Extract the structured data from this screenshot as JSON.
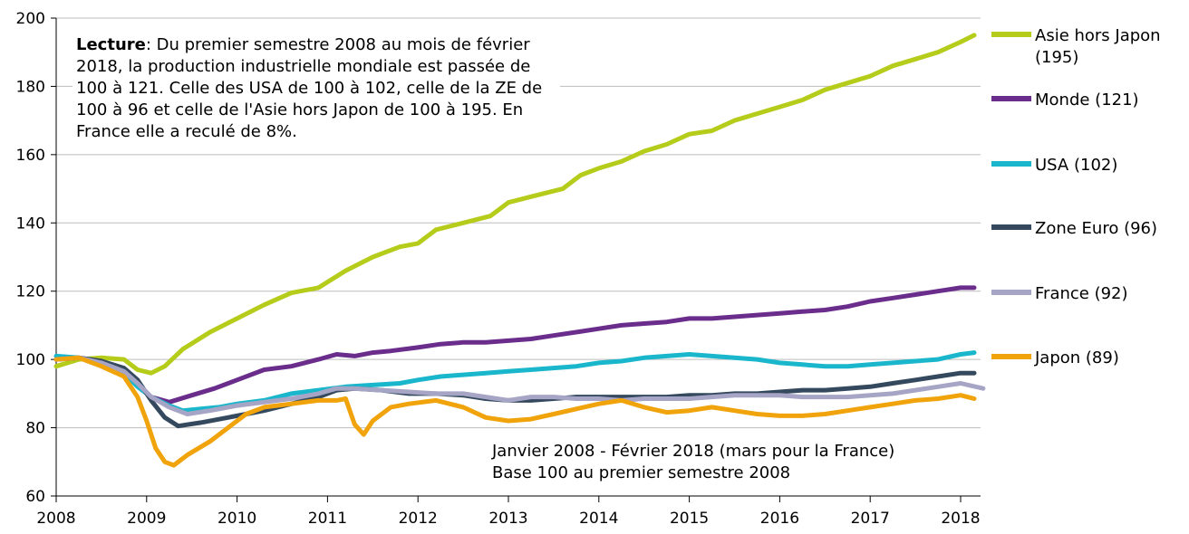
{
  "chart_data": {
    "type": "line",
    "x_range": [
      2008.0,
      2018.25
    ],
    "ylim": [
      60,
      200
    ],
    "yticks": [
      60,
      80,
      100,
      120,
      140,
      160,
      180,
      200
    ],
    "xticks": [
      "2008",
      "2009",
      "2010",
      "2011",
      "2012",
      "2013",
      "2014",
      "2015",
      "2016",
      "2017",
      "2018"
    ],
    "grid": "horizontal",
    "legend_placement": "right",
    "annotation": {
      "title": "Lecture",
      "text": ": Du premier semestre 2008 au mois de février 2018, la production industrielle mondiale est passée de 100 à 121. Celle des USA de 100 à 102, celle de la ZE de 100 à 96 et celle de l'Asie hors Japon de 100 à 195. En France elle a reculé de 8%."
    },
    "source_lines": [
      "Janvier 2008 - Février 2018 (mars pour la France)",
      "Base 100 au premier semestre 2008"
    ],
    "series": [
      {
        "name": "Asie hors Japon (195)",
        "legend_lines": [
          "Asie hors Japon",
          "(195)"
        ],
        "color": "#b5cc1a",
        "points": [
          [
            2008.0,
            98
          ],
          [
            2008.25,
            100
          ],
          [
            2008.5,
            100.5
          ],
          [
            2008.75,
            100
          ],
          [
            2008.9,
            97
          ],
          [
            2009.05,
            96
          ],
          [
            2009.2,
            98
          ],
          [
            2009.4,
            103
          ],
          [
            2009.7,
            108
          ],
          [
            2010.0,
            112
          ],
          [
            2010.3,
            116
          ],
          [
            2010.6,
            119.5
          ],
          [
            2010.9,
            121
          ],
          [
            2011.2,
            126
          ],
          [
            2011.5,
            130
          ],
          [
            2011.8,
            133
          ],
          [
            2012.0,
            134
          ],
          [
            2012.2,
            138
          ],
          [
            2012.5,
            140
          ],
          [
            2012.8,
            142
          ],
          [
            2013.0,
            146
          ],
          [
            2013.3,
            148
          ],
          [
            2013.6,
            150
          ],
          [
            2013.8,
            154
          ],
          [
            2014.0,
            156
          ],
          [
            2014.25,
            158
          ],
          [
            2014.5,
            161
          ],
          [
            2014.75,
            163
          ],
          [
            2015.0,
            166
          ],
          [
            2015.25,
            167
          ],
          [
            2015.5,
            170
          ],
          [
            2015.75,
            172
          ],
          [
            2016.0,
            174
          ],
          [
            2016.25,
            176
          ],
          [
            2016.5,
            179
          ],
          [
            2016.75,
            181
          ],
          [
            2017.0,
            183
          ],
          [
            2017.25,
            186
          ],
          [
            2017.5,
            188
          ],
          [
            2017.75,
            190
          ],
          [
            2018.0,
            193
          ],
          [
            2018.15,
            195
          ]
        ]
      },
      {
        "name": "Monde (121)",
        "legend_lines": [
          "Monde (121)"
        ],
        "color": "#6b2d8b",
        "points": [
          [
            2008.0,
            100
          ],
          [
            2008.25,
            100.5
          ],
          [
            2008.5,
            99.5
          ],
          [
            2008.75,
            97
          ],
          [
            2008.9,
            93
          ],
          [
            2009.05,
            89
          ],
          [
            2009.25,
            87.5
          ],
          [
            2009.5,
            89.5
          ],
          [
            2009.75,
            91.5
          ],
          [
            2010.0,
            94
          ],
          [
            2010.3,
            97
          ],
          [
            2010.6,
            98
          ],
          [
            2010.9,
            100
          ],
          [
            2011.1,
            101.5
          ],
          [
            2011.3,
            101
          ],
          [
            2011.5,
            102
          ],
          [
            2011.7,
            102.5
          ],
          [
            2012.0,
            103.5
          ],
          [
            2012.25,
            104.5
          ],
          [
            2012.5,
            105
          ],
          [
            2012.75,
            105
          ],
          [
            2013.0,
            105.5
          ],
          [
            2013.25,
            106
          ],
          [
            2013.5,
            107
          ],
          [
            2013.75,
            108
          ],
          [
            2014.0,
            109
          ],
          [
            2014.25,
            110
          ],
          [
            2014.5,
            110.5
          ],
          [
            2014.75,
            111
          ],
          [
            2015.0,
            112
          ],
          [
            2015.25,
            112
          ],
          [
            2015.5,
            112.5
          ],
          [
            2015.75,
            113
          ],
          [
            2016.0,
            113.5
          ],
          [
            2016.25,
            114
          ],
          [
            2016.5,
            114.5
          ],
          [
            2016.75,
            115.5
          ],
          [
            2017.0,
            117
          ],
          [
            2017.25,
            118
          ],
          [
            2017.5,
            119
          ],
          [
            2017.75,
            120
          ],
          [
            2018.0,
            121
          ],
          [
            2018.15,
            121
          ]
        ]
      },
      {
        "name": "USA (102)",
        "legend_lines": [
          "USA (102)"
        ],
        "color": "#19b6cc",
        "points": [
          [
            2008.0,
            101
          ],
          [
            2008.25,
            100.5
          ],
          [
            2008.5,
            98.5
          ],
          [
            2008.75,
            96
          ],
          [
            2008.9,
            92
          ],
          [
            2009.05,
            89
          ],
          [
            2009.25,
            86.5
          ],
          [
            2009.4,
            85
          ],
          [
            2009.6,
            85.5
          ],
          [
            2009.8,
            86
          ],
          [
            2010.0,
            87
          ],
          [
            2010.3,
            88
          ],
          [
            2010.6,
            90
          ],
          [
            2010.9,
            91
          ],
          [
            2011.2,
            92
          ],
          [
            2011.5,
            92.5
          ],
          [
            2011.8,
            93
          ],
          [
            2012.0,
            94
          ],
          [
            2012.25,
            95
          ],
          [
            2012.5,
            95.5
          ],
          [
            2012.75,
            96
          ],
          [
            2013.0,
            96.5
          ],
          [
            2013.25,
            97
          ],
          [
            2013.5,
            97.5
          ],
          [
            2013.75,
            98
          ],
          [
            2014.0,
            99
          ],
          [
            2014.25,
            99.5
          ],
          [
            2014.5,
            100.5
          ],
          [
            2014.75,
            101
          ],
          [
            2015.0,
            101.5
          ],
          [
            2015.25,
            101
          ],
          [
            2015.5,
            100.5
          ],
          [
            2015.75,
            100
          ],
          [
            2016.0,
            99
          ],
          [
            2016.25,
            98.5
          ],
          [
            2016.5,
            98
          ],
          [
            2016.75,
            98
          ],
          [
            2017.0,
            98.5
          ],
          [
            2017.25,
            99
          ],
          [
            2017.5,
            99.5
          ],
          [
            2017.75,
            100
          ],
          [
            2018.0,
            101.5
          ],
          [
            2018.15,
            102
          ]
        ]
      },
      {
        "name": "Zone Euro (96)",
        "legend_lines": [
          "Zone Euro (96)"
        ],
        "color": "#34495e",
        "points": [
          [
            2008.0,
            100
          ],
          [
            2008.25,
            100.5
          ],
          [
            2008.5,
            99.5
          ],
          [
            2008.75,
            97.5
          ],
          [
            2008.9,
            94
          ],
          [
            2009.05,
            88
          ],
          [
            2009.2,
            83
          ],
          [
            2009.35,
            80.5
          ],
          [
            2009.6,
            81.5
          ],
          [
            2009.9,
            83
          ],
          [
            2010.1,
            84
          ],
          [
            2010.3,
            85
          ],
          [
            2010.6,
            87
          ],
          [
            2010.9,
            89
          ],
          [
            2011.1,
            91
          ],
          [
            2011.3,
            91.5
          ],
          [
            2011.6,
            91
          ],
          [
            2011.9,
            90
          ],
          [
            2012.2,
            90
          ],
          [
            2012.5,
            89.5
          ],
          [
            2012.75,
            88.5
          ],
          [
            2013.0,
            88
          ],
          [
            2013.25,
            88
          ],
          [
            2013.5,
            88.5
          ],
          [
            2013.75,
            89
          ],
          [
            2014.0,
            89
          ],
          [
            2014.25,
            89
          ],
          [
            2014.5,
            89
          ],
          [
            2014.75,
            89
          ],
          [
            2015.0,
            89.5
          ],
          [
            2015.25,
            89.5
          ],
          [
            2015.5,
            90
          ],
          [
            2015.75,
            90
          ],
          [
            2016.0,
            90.5
          ],
          [
            2016.25,
            91
          ],
          [
            2016.5,
            91
          ],
          [
            2016.75,
            91.5
          ],
          [
            2017.0,
            92
          ],
          [
            2017.25,
            93
          ],
          [
            2017.5,
            94
          ],
          [
            2017.75,
            95
          ],
          [
            2018.0,
            96
          ],
          [
            2018.15,
            96
          ]
        ]
      },
      {
        "name": "France (92)",
        "legend_lines": [
          "France (92)"
        ],
        "color": "#a7a5c6",
        "points": [
          [
            2008.0,
            100
          ],
          [
            2008.25,
            100.5
          ],
          [
            2008.5,
            99
          ],
          [
            2008.75,
            96.5
          ],
          [
            2008.9,
            93
          ],
          [
            2009.05,
            89
          ],
          [
            2009.25,
            86
          ],
          [
            2009.45,
            84
          ],
          [
            2009.7,
            85
          ],
          [
            2010.0,
            86.5
          ],
          [
            2010.3,
            87.5
          ],
          [
            2010.6,
            88.5
          ],
          [
            2010.9,
            90
          ],
          [
            2011.1,
            91.5
          ],
          [
            2011.3,
            91.5
          ],
          [
            2011.6,
            91
          ],
          [
            2011.9,
            90.5
          ],
          [
            2012.2,
            90
          ],
          [
            2012.5,
            90
          ],
          [
            2012.75,
            89
          ],
          [
            2013.0,
            88
          ],
          [
            2013.25,
            89
          ],
          [
            2013.5,
            89
          ],
          [
            2013.75,
            88.5
          ],
          [
            2014.0,
            88.5
          ],
          [
            2014.25,
            88
          ],
          [
            2014.5,
            88.5
          ],
          [
            2014.75,
            88.5
          ],
          [
            2015.0,
            88.5
          ],
          [
            2015.25,
            89
          ],
          [
            2015.5,
            89.5
          ],
          [
            2015.75,
            89.5
          ],
          [
            2016.0,
            89.5
          ],
          [
            2016.25,
            89
          ],
          [
            2016.5,
            89
          ],
          [
            2016.75,
            89
          ],
          [
            2017.0,
            89.5
          ],
          [
            2017.25,
            90
          ],
          [
            2017.5,
            91
          ],
          [
            2017.75,
            92
          ],
          [
            2018.0,
            93
          ],
          [
            2018.25,
            91.5
          ]
        ]
      },
      {
        "name": "Japon (89)",
        "legend_lines": [
          "Japon (89)"
        ],
        "color": "#f0a30a",
        "points": [
          [
            2008.0,
            100
          ],
          [
            2008.25,
            100.5
          ],
          [
            2008.5,
            98
          ],
          [
            2008.75,
            95
          ],
          [
            2008.9,
            89
          ],
          [
            2009.0,
            82
          ],
          [
            2009.1,
            74
          ],
          [
            2009.2,
            70
          ],
          [
            2009.3,
            69
          ],
          [
            2009.45,
            72
          ],
          [
            2009.7,
            76
          ],
          [
            2009.9,
            80
          ],
          [
            2010.1,
            84
          ],
          [
            2010.3,
            86
          ],
          [
            2010.6,
            87
          ],
          [
            2010.9,
            88
          ],
          [
            2011.1,
            88
          ],
          [
            2011.2,
            88.5
          ],
          [
            2011.3,
            81
          ],
          [
            2011.4,
            78
          ],
          [
            2011.5,
            82
          ],
          [
            2011.7,
            86
          ],
          [
            2011.9,
            87
          ],
          [
            2012.2,
            88
          ],
          [
            2012.5,
            86
          ],
          [
            2012.75,
            83
          ],
          [
            2013.0,
            82
          ],
          [
            2013.25,
            82.5
          ],
          [
            2013.5,
            84
          ],
          [
            2013.75,
            85.5
          ],
          [
            2014.0,
            87
          ],
          [
            2014.25,
            88
          ],
          [
            2014.5,
            86
          ],
          [
            2014.75,
            84.5
          ],
          [
            2015.0,
            85
          ],
          [
            2015.25,
            86
          ],
          [
            2015.5,
            85
          ],
          [
            2015.75,
            84
          ],
          [
            2016.0,
            83.5
          ],
          [
            2016.25,
            83.5
          ],
          [
            2016.5,
            84
          ],
          [
            2016.75,
            85
          ],
          [
            2017.0,
            86
          ],
          [
            2017.25,
            87
          ],
          [
            2017.5,
            88
          ],
          [
            2017.75,
            88.5
          ],
          [
            2018.0,
            89.5
          ],
          [
            2018.15,
            88.5
          ]
        ]
      }
    ]
  }
}
